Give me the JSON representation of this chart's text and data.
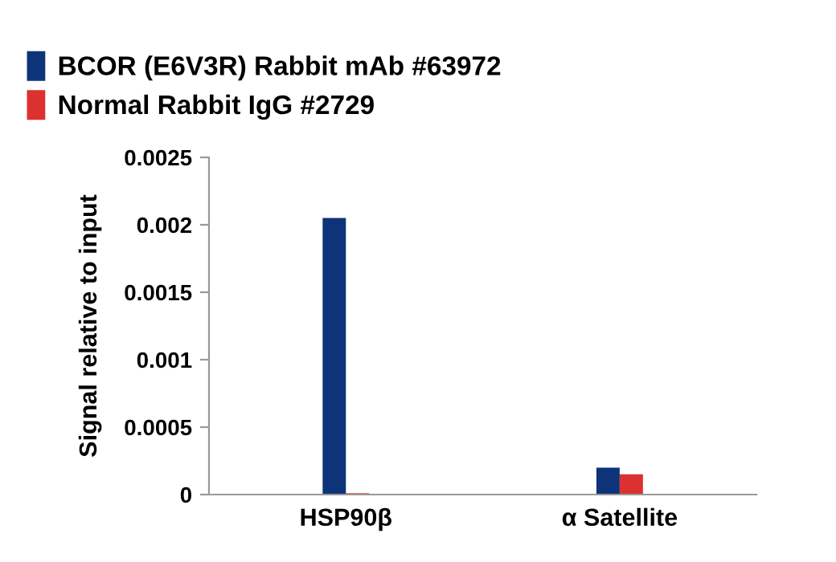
{
  "chart_data": {
    "type": "bar",
    "ylabel": "Signal relative to input",
    "categories": [
      "HSP90β",
      "α Satellite"
    ],
    "series": [
      {
        "name": "BCOR (E6V3R) Rabbit mAb #63972",
        "color": "#0d3479",
        "values": [
          0.00205,
          0.0002
        ]
      },
      {
        "name": "Normal Rabbit IgG #2729",
        "color": "#dc3131",
        "values": [
          1e-05,
          0.00015
        ]
      }
    ],
    "ylim": [
      0,
      0.0025
    ],
    "yticks": [
      {
        "value": 0,
        "label": "0"
      },
      0.0005,
      0.001,
      0.0015,
      0.002,
      0.0025
    ],
    "legend": "top left",
    "grid": false
  }
}
